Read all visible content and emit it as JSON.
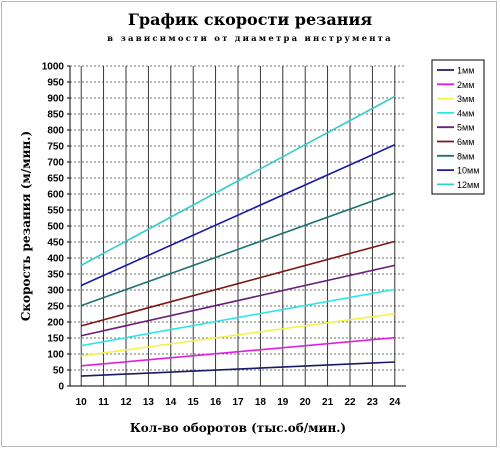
{
  "chart_data": {
    "type": "line",
    "title": "График скорости резания",
    "subtitle": "в зависимости от диаметра инструмента",
    "xlabel": "Кол-во оборотов (тыс.об/мин.)",
    "ylabel": "Скорость резания (м/мин.)",
    "xlim": [
      10,
      24
    ],
    "ylim": [
      0,
      1000
    ],
    "x_ticks": [
      10,
      11,
      12,
      13,
      14,
      15,
      16,
      17,
      18,
      19,
      20,
      21,
      22,
      23,
      24
    ],
    "y_ticks": [
      0,
      50,
      100,
      150,
      200,
      250,
      300,
      350,
      400,
      450,
      500,
      550,
      600,
      650,
      700,
      750,
      800,
      850,
      900,
      950,
      1000
    ],
    "grid": true,
    "legend_position": "top-right",
    "x": [
      10,
      24
    ],
    "series": [
      {
        "name": "1мм",
        "color": "#1a1a66",
        "values": [
          31,
          75
        ]
      },
      {
        "name": "2мм",
        "color": "#e11ee1",
        "values": [
          63,
          151
        ]
      },
      {
        "name": "3мм",
        "color": "#f2f24a",
        "values": [
          94,
          226
        ]
      },
      {
        "name": "4мм",
        "color": "#2ee6e6",
        "values": [
          126,
          302
        ]
      },
      {
        "name": "5мм",
        "color": "#6b1f7a",
        "values": [
          157,
          377
        ]
      },
      {
        "name": "6мм",
        "color": "#7a1616",
        "values": [
          188,
          452
        ]
      },
      {
        "name": "8мм",
        "color": "#1f7373",
        "values": [
          251,
          603
        ]
      },
      {
        "name": "10мм",
        "color": "#1a1aa8",
        "values": [
          314,
          754
        ]
      },
      {
        "name": "12мм",
        "color": "#33cccc",
        "values": [
          377,
          905
        ]
      }
    ]
  }
}
